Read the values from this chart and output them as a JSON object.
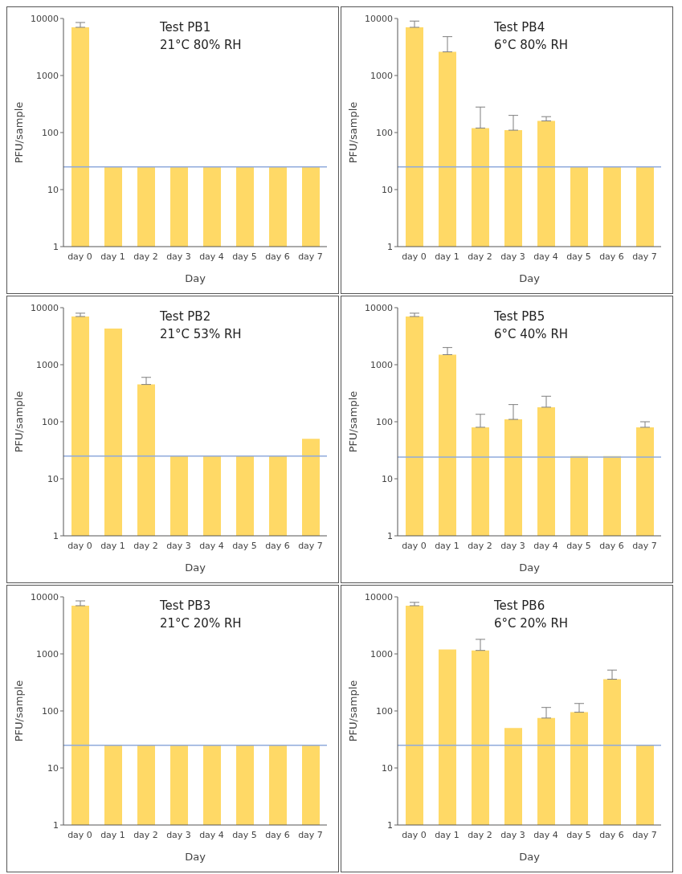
{
  "chart_data": [
    {
      "type": "bar",
      "title": "Test PB1",
      "subtitle": "21°C 80% RH",
      "xlabel": "Day",
      "ylabel": "PFU/sample",
      "categories": [
        "day 0",
        "day 1",
        "day 2",
        "day 3",
        "day 4",
        "day 5",
        "day 6",
        "day 7"
      ],
      "color": "#ffd966",
      "values": [
        7000,
        25,
        25,
        25,
        25,
        25,
        25,
        25
      ],
      "errors": [
        [
          7000,
          8500
        ],
        null,
        null,
        null,
        null,
        null,
        null,
        null
      ],
      "log": true,
      "ylim": [
        1,
        10000
      ],
      "yticks": [
        1,
        10,
        100,
        1000,
        10000
      ],
      "ref_lines": [
        {
          "axis": "y",
          "value": 25,
          "color": "#8faadc"
        }
      ]
    },
    {
      "type": "bar",
      "title": "Test PB4",
      "subtitle": "6°C 80% RH",
      "xlabel": "Day",
      "ylabel": "PFU/sample",
      "categories": [
        "day 0",
        "day 1",
        "day 2",
        "day 3",
        "day 4",
        "day 5",
        "day 6",
        "day 7"
      ],
      "color": "#ffd966",
      "values": [
        7000,
        2600,
        120,
        110,
        160,
        25,
        25,
        25
      ],
      "errors": [
        [
          7000,
          9000
        ],
        [
          2600,
          4800
        ],
        [
          120,
          280
        ],
        [
          110,
          200
        ],
        [
          160,
          190
        ],
        null,
        null,
        null
      ],
      "log": true,
      "ylim": [
        1,
        10000
      ],
      "yticks": [
        1,
        10,
        100,
        1000,
        10000
      ],
      "ref_lines": [
        {
          "axis": "y",
          "value": 25,
          "color": "#8faadc"
        }
      ]
    },
    {
      "type": "bar",
      "title": "Test PB2",
      "subtitle": "21°C 53% RH",
      "xlabel": "Day",
      "ylabel": "PFU/sample",
      "categories": [
        "day 0",
        "day 1",
        "day 2",
        "day 3",
        "day 4",
        "day 5",
        "day 6",
        "day 7"
      ],
      "color": "#ffd966",
      "values": [
        7000,
        4300,
        450,
        25,
        25,
        25,
        25,
        50
      ],
      "errors": [
        [
          7000,
          8000
        ],
        null,
        [
          450,
          600
        ],
        null,
        null,
        null,
        null,
        null
      ],
      "log": true,
      "ylim": [
        1,
        10000
      ],
      "yticks": [
        1,
        10,
        100,
        1000,
        10000
      ],
      "ref_lines": [
        {
          "axis": "y",
          "value": 25,
          "color": "#8faadc"
        }
      ]
    },
    {
      "type": "bar",
      "title": "Test PB5",
      "subtitle": "6°C 40% RH",
      "xlabel": "Day",
      "ylabel": "PFU/sample",
      "categories": [
        "day 0",
        "day 1",
        "day 2",
        "day 3",
        "day 4",
        "day 5",
        "day 6",
        "day 7"
      ],
      "color": "#ffd966",
      "values": [
        7000,
        1500,
        80,
        110,
        180,
        25,
        25,
        80
      ],
      "errors": [
        [
          7000,
          8000
        ],
        [
          1500,
          2000
        ],
        [
          80,
          135
        ],
        [
          110,
          200
        ],
        [
          180,
          280
        ],
        null,
        null,
        [
          80,
          100
        ]
      ],
      "log": true,
      "ylim": [
        1,
        10000
      ],
      "yticks": [
        1,
        10,
        100,
        1000,
        10000
      ],
      "ref_lines": [
        {
          "axis": "y",
          "value": 24,
          "color": "#8faadc"
        }
      ]
    },
    {
      "type": "bar",
      "title": "Test PB3",
      "subtitle": "21°C 20% RH",
      "xlabel": "Day",
      "ylabel": "PFU/sample",
      "categories": [
        "day 0",
        "day 1",
        "day 2",
        "day 3",
        "day 4",
        "day 5",
        "day 6",
        "day 7"
      ],
      "color": "#ffd966",
      "values": [
        7000,
        25,
        25,
        25,
        25,
        25,
        25,
        25
      ],
      "errors": [
        [
          7000,
          8500
        ],
        null,
        null,
        null,
        null,
        null,
        null,
        null
      ],
      "log": true,
      "ylim": [
        1,
        10000
      ],
      "yticks": [
        1,
        10,
        100,
        1000,
        10000
      ],
      "ref_lines": [
        {
          "axis": "y",
          "value": 25,
          "color": "#8faadc"
        }
      ]
    },
    {
      "type": "bar",
      "title": "Test PB6",
      "subtitle": "6°C 20% RH",
      "xlabel": "Day",
      "ylabel": "PFU/sample",
      "categories": [
        "day 0",
        "day 1",
        "day 2",
        "day 3",
        "day 4",
        "day 5",
        "day 6",
        "day 7"
      ],
      "color": "#ffd966",
      "values": [
        7000,
        1200,
        1150,
        50,
        75,
        95,
        360,
        25
      ],
      "errors": [
        [
          7000,
          8000
        ],
        null,
        [
          1150,
          1800
        ],
        null,
        [
          75,
          115
        ],
        [
          95,
          135
        ],
        [
          360,
          520
        ],
        null
      ],
      "log": true,
      "ylim": [
        1,
        10000
      ],
      "yticks": [
        1,
        10,
        100,
        1000,
        10000
      ],
      "ref_lines": [
        {
          "axis": "y",
          "value": 25,
          "color": "#8faadc"
        }
      ]
    }
  ]
}
